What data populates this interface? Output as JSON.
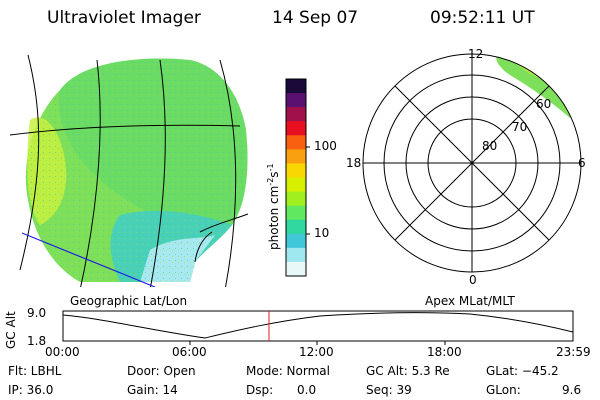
{
  "header": {
    "instrument": "Ultraviolet Imager",
    "date": "14 Sep 07",
    "time": "09:52:11 UT"
  },
  "colorbar": {
    "unit_label": "photon cm",
    "unit_exp1": "-2",
    "unit_s": "s",
    "unit_exp2": "-1",
    "ticks": [
      "100",
      "10"
    ],
    "colors": [
      "#1a0a3a",
      "#5a1070",
      "#a0104a",
      "#e81020",
      "#f86010",
      "#f8a010",
      "#f8d800",
      "#d8f000",
      "#a0f020",
      "#60e860",
      "#30d8a0",
      "#40c8d8",
      "#a0e8f0",
      "#e8f8f8"
    ]
  },
  "left_map": {
    "label": "Geographic Lat/Lon"
  },
  "polar_plot": {
    "label": "Apex MLat/MLT",
    "mlt_labels": {
      "top": "12",
      "bottom": "0",
      "left": "18",
      "right": "6"
    },
    "lat_labels": [
      "80",
      "70",
      "60"
    ]
  },
  "timeline": {
    "y_label": "GC Alt",
    "y_ticks": [
      "9.0",
      "1.8"
    ],
    "x_ticks": [
      "00:00",
      "06:00",
      "12:00",
      "18:00",
      "23:59"
    ],
    "marker_color": "#e02020"
  },
  "footer": {
    "row1": [
      "Flt: LBHL",
      "Door: Open",
      "Mode: Normal",
      "GC Alt: 5.3 Re",
      "GLat: −45.2"
    ],
    "row2": [
      "IP: 36.0",
      "Gain: 14",
      "Dsp:",
      "0.0",
      "Seq: 39",
      "GLon:",
      "9.6"
    ]
  }
}
